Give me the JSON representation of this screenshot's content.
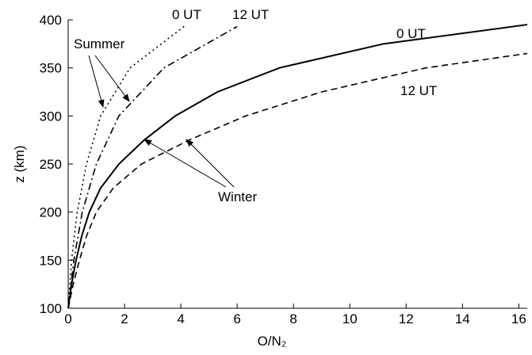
{
  "chart_data": {
    "type": "line",
    "xlabel": "O/N₂",
    "ylabel": "z (km)",
    "xlim": [
      0,
      16.3
    ],
    "ylim": [
      100,
      400
    ],
    "xticks": [
      0,
      2,
      4,
      6,
      8,
      10,
      12,
      14,
      16
    ],
    "yticks": [
      100,
      150,
      200,
      250,
      300,
      350,
      400
    ],
    "series": [
      {
        "color": "#000000",
        "style": "solid",
        "x": [
          0,
          0.12,
          0.28,
          0.48,
          0.75,
          1.15,
          1.8,
          2.7,
          3.8,
          5.3,
          7.5,
          11.2,
          16.3
        ],
        "values": [
          100,
          125,
          150,
          175,
          200,
          225,
          250,
          275,
          300,
          325,
          350,
          375,
          395
        ]
      },
      {
        "color": "#000000",
        "style": "dashed",
        "x": [
          0,
          0.18,
          0.4,
          0.65,
          1.0,
          1.6,
          2.6,
          4.3,
          6.3,
          9.0,
          12.7,
          16.3
        ],
        "values": [
          100,
          125,
          150,
          175,
          200,
          225,
          250,
          275,
          300,
          325,
          350,
          365
        ]
      },
      {
        "color": "#000000",
        "style": "dotted",
        "x": [
          0,
          0.12,
          0.32,
          0.65,
          1.15,
          2.2,
          4.2
        ],
        "values": [
          100,
          150,
          200,
          250,
          300,
          350,
          395
        ]
      },
      {
        "color": "#000000",
        "style": "dashdot",
        "x": [
          0,
          0.2,
          0.5,
          1.0,
          1.8,
          3.4,
          6.0
        ],
        "values": [
          100,
          150,
          200,
          250,
          300,
          350,
          393
        ]
      }
    ],
    "annotations": [
      "0 UT",
      "12 UT",
      "0 UT",
      "12 UT",
      "Summer",
      "Winter"
    ]
  }
}
